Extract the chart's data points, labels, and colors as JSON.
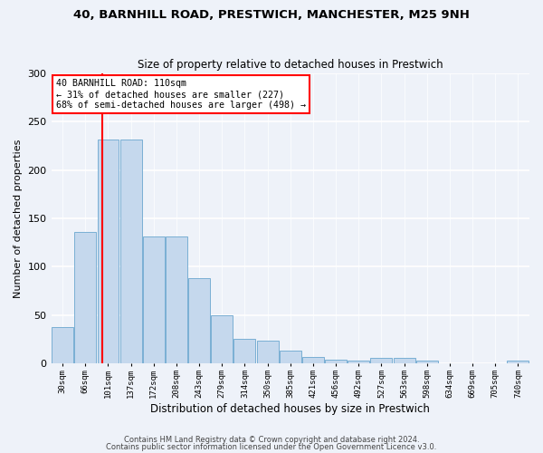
{
  "title1": "40, BARNHILL ROAD, PRESTWICH, MANCHESTER, M25 9NH",
  "title2": "Size of property relative to detached houses in Prestwich",
  "xlabel": "Distribution of detached houses by size in Prestwich",
  "ylabel": "Number of detached properties",
  "categories": [
    "30sqm",
    "66sqm",
    "101sqm",
    "137sqm",
    "172sqm",
    "208sqm",
    "243sqm",
    "279sqm",
    "314sqm",
    "350sqm",
    "385sqm",
    "421sqm",
    "456sqm",
    "492sqm",
    "527sqm",
    "563sqm",
    "598sqm",
    "634sqm",
    "669sqm",
    "705sqm",
    "740sqm"
  ],
  "bar_values": [
    38,
    136,
    232,
    232,
    131,
    131,
    88,
    50,
    25,
    24,
    13,
    7,
    4,
    3,
    6,
    6,
    3,
    0,
    0,
    0,
    3
  ],
  "bar_color": "#c5d8ed",
  "bar_edge_color": "#7aafd4",
  "annotation_line1": "40 BARNHILL ROAD: 110sqm",
  "annotation_line2": "← 31% of detached houses are smaller (227)",
  "annotation_line3": "68% of semi-detached houses are larger (498) →",
  "redline_bar_index": 2,
  "ylim": [
    0,
    300
  ],
  "yticks": [
    0,
    50,
    100,
    150,
    200,
    250,
    300
  ],
  "background_color": "#eef2f9",
  "grid_color": "#ffffff",
  "bar_linewidth": 0.7,
  "footer1": "Contains HM Land Registry data © Crown copyright and database right 2024.",
  "footer2": "Contains public sector information licensed under the Open Government Licence v3.0."
}
